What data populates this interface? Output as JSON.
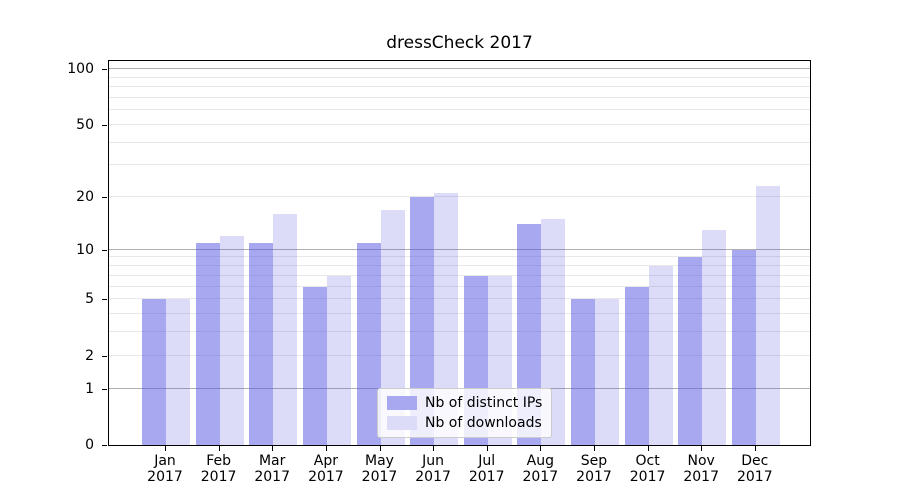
{
  "chart_data": {
    "type": "bar",
    "title": "dressCheck 2017",
    "categories": [
      "Jan",
      "Feb",
      "Mar",
      "Apr",
      "May",
      "Jun",
      "Jul",
      "Aug",
      "Sep",
      "Oct",
      "Nov",
      "Dec"
    ],
    "year": "2017",
    "series": [
      {
        "name": "Nb of distinct IPs",
        "values": [
          5,
          11,
          11,
          6,
          11,
          20,
          7,
          14,
          5,
          6,
          9,
          10
        ],
        "fill": "rgba(81,81,225,0.5)",
        "swatch": "#a8a8f0"
      },
      {
        "name": "Nb of downloads",
        "values": [
          5,
          12,
          16,
          7,
          17,
          21,
          7,
          15,
          5,
          8,
          13,
          23
        ],
        "fill": "rgba(81,81,225,0.2)",
        "swatch": "#dcdcf9"
      }
    ],
    "yscale": "log1p",
    "ylim": [
      0,
      113
    ],
    "yticks": [
      0,
      1,
      2,
      5,
      10,
      20,
      50,
      100
    ],
    "major_gridlines": [
      1,
      10,
      100
    ],
    "minor_gridlines": [
      2,
      3,
      4,
      5,
      6,
      7,
      8,
      9,
      20,
      30,
      40,
      50,
      60,
      70,
      80,
      90
    ],
    "grid": true,
    "legend_position": "inside lower-center",
    "xlabel": "",
    "ylabel": ""
  },
  "legend": {
    "items": [
      {
        "label": "Nb of distinct IPs",
        "color": "#a8a8f0"
      },
      {
        "label": "Nb of downloads",
        "color": "#dcdcf9"
      }
    ]
  },
  "colors": {
    "major_grid": "#b0b0b0",
    "minor_grid": "#e8e8e8",
    "spine": "#000000",
    "bar_base": "#5151e1"
  }
}
